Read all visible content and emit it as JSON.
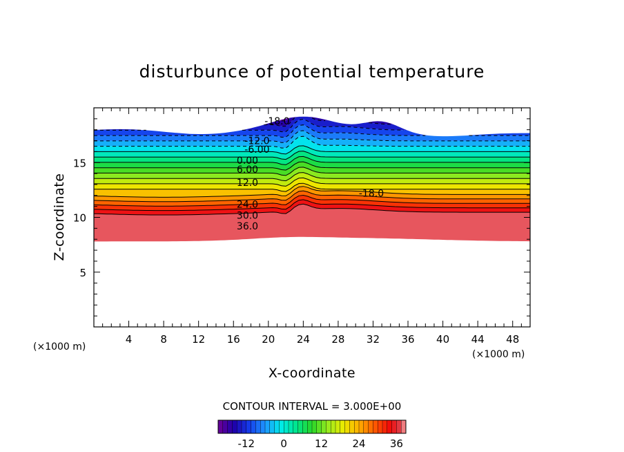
{
  "chart_data": {
    "type": "contour",
    "title": "disturbunce of potential temperature",
    "xlabel": "X-coordinate",
    "ylabel": "Z-coordinate",
    "x_unit_left": "(×1000 m)",
    "x_unit_right": "(×1000 m)",
    "xlim": [
      0,
      50
    ],
    "ylim": [
      0,
      20
    ],
    "x_ticks": [
      4,
      8,
      12,
      16,
      20,
      24,
      28,
      32,
      36,
      40,
      44,
      48
    ],
    "y_ticks": [
      5,
      10,
      15
    ],
    "x_tick_labels": [
      "4",
      "8",
      "12",
      "16",
      "20",
      "24",
      "28",
      "32",
      "36",
      "40",
      "44",
      "48"
    ],
    "y_tick_labels": [
      "5",
      "10",
      "15"
    ],
    "contour_interval_text": "CONTOUR INTERVAL = 3.000E+00",
    "contour_interval": 3.0,
    "value_range": [
      -21,
      39
    ],
    "negative_contours_dashed": true,
    "contour_labels": [
      {
        "text": "-18.0",
        "x": 21.0,
        "z": 18.8
      },
      {
        "text": "-12.0",
        "x": 18.7,
        "z": 17.0
      },
      {
        "text": "-6.00",
        "x": 18.7,
        "z": 16.2
      },
      {
        "text": "0.00",
        "x": 17.6,
        "z": 15.2
      },
      {
        "text": "6.00",
        "x": 17.6,
        "z": 14.4
      },
      {
        "text": "12.0",
        "x": 17.6,
        "z": 13.2
      },
      {
        "text": "-18.0",
        "x": 31.8,
        "z": 12.2
      },
      {
        "text": "24.0",
        "x": 17.6,
        "z": 11.2
      },
      {
        "text": "30.0",
        "x": 17.6,
        "z": 10.2
      },
      {
        "text": "36.0",
        "x": 17.6,
        "z": 9.2
      }
    ],
    "colorbar": {
      "tick_labels": [
        "-12",
        "0",
        "12",
        "24",
        "36"
      ],
      "tick_values": [
        -12,
        0,
        12,
        24,
        36
      ],
      "range": [
        -21,
        39
      ]
    },
    "grid": false,
    "legend": "colorbar bottom-center"
  }
}
